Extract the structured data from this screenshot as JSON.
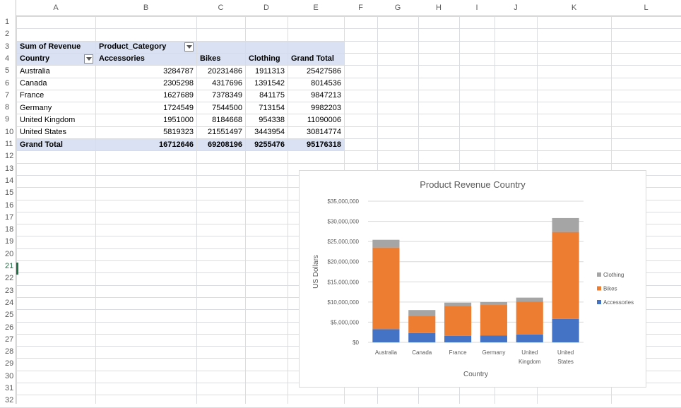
{
  "columns": [
    "A",
    "B",
    "C",
    "D",
    "E",
    "F",
    "G",
    "H",
    "I",
    "J",
    "K",
    "L"
  ],
  "rows": [
    "1",
    "2",
    "3",
    "4",
    "5",
    "6",
    "7",
    "8",
    "9",
    "10",
    "11",
    "12",
    "13",
    "14",
    "15",
    "16",
    "17",
    "18",
    "19",
    "20",
    "21",
    "22",
    "23",
    "24",
    "25",
    "26",
    "27",
    "28",
    "29",
    "30",
    "31",
    "32"
  ],
  "selected_row": "21",
  "pivot": {
    "value_label": "Sum of Revenue",
    "column_field": "Product_Category",
    "row_field": "Country",
    "col_headers": [
      "Accessories",
      "Bikes",
      "Clothing",
      "Grand Total"
    ],
    "data_rows": [
      {
        "label": "Australia",
        "values": [
          "3284787",
          "20231486",
          "1911313",
          "25427586"
        ]
      },
      {
        "label": "Canada",
        "values": [
          "2305298",
          "4317696",
          "1391542",
          "8014536"
        ]
      },
      {
        "label": "France",
        "values": [
          "1627689",
          "7378349",
          "841175",
          "9847213"
        ]
      },
      {
        "label": "Germany",
        "values": [
          "1724549",
          "7544500",
          "713154",
          "9982203"
        ]
      },
      {
        "label": "United Kingdom",
        "values": [
          "1951000",
          "8184668",
          "954338",
          "11090006"
        ]
      },
      {
        "label": "United States",
        "values": [
          "5819323",
          "21551497",
          "3443954",
          "30814774"
        ]
      }
    ],
    "total_row": {
      "label": "Grand Total",
      "values": [
        "16712646",
        "69208196",
        "9255476",
        "95176318"
      ]
    }
  },
  "chart_data": {
    "type": "bar",
    "stacked": true,
    "title": "Product Revenue  Country",
    "xlabel": "Country",
    "ylabel": "US Dollars",
    "categories": [
      "Australia",
      "Canada",
      "France",
      "Germany",
      "United Kingdom",
      "United States"
    ],
    "category_lines": [
      [
        "Australia"
      ],
      [
        "Canada"
      ],
      [
        "France"
      ],
      [
        "Germany"
      ],
      [
        "United",
        "Kingdom"
      ],
      [
        "United",
        "States"
      ]
    ],
    "series": [
      {
        "name": "Accessories",
        "color": "#4472c4",
        "values": [
          3284787,
          2305298,
          1627689,
          1724549,
          1951000,
          5819323
        ]
      },
      {
        "name": "Bikes",
        "color": "#ed7d31",
        "values": [
          20231486,
          4317696,
          7378349,
          7544500,
          8184668,
          21551497
        ]
      },
      {
        "name": "Clothing",
        "color": "#a5a5a5",
        "values": [
          1911313,
          1391542,
          841175,
          713154,
          954338,
          3443954
        ]
      }
    ],
    "legend_order": [
      "Clothing",
      "Bikes",
      "Accessories"
    ],
    "ylim": [
      0,
      35000000
    ],
    "yticks": [
      0,
      5000000,
      10000000,
      15000000,
      20000000,
      25000000,
      30000000,
      35000000
    ],
    "ytick_labels": [
      "$0",
      "$5,000,000",
      "$10,000,000",
      "$15,000,000",
      "$20,000,000",
      "$25,000,000",
      "$30,000,000",
      "$35,000,000"
    ],
    "grid": true,
    "legend_position": "right"
  }
}
